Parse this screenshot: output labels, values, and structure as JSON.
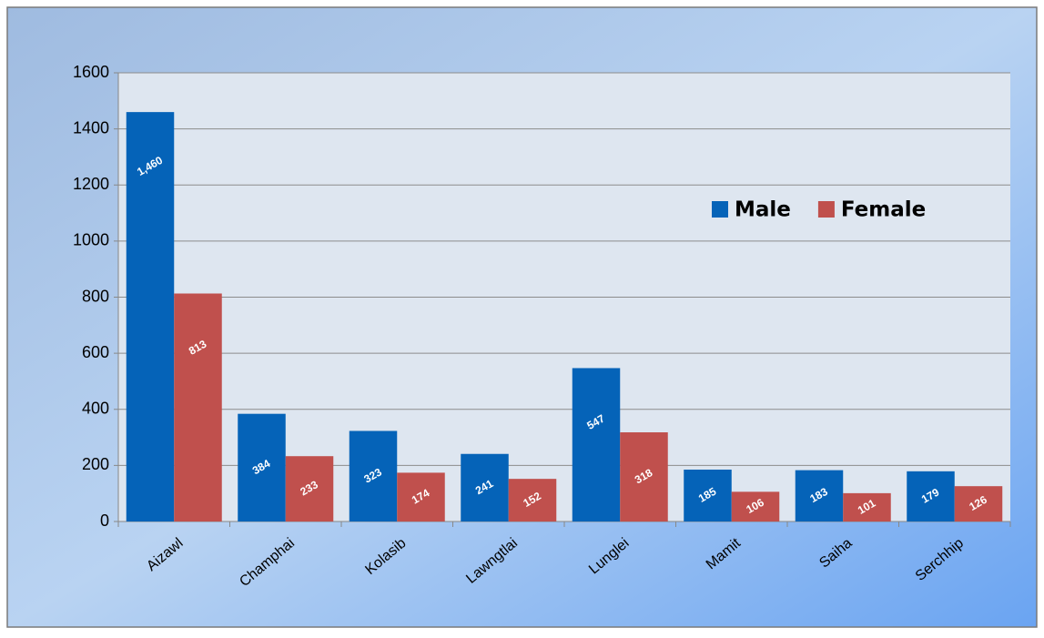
{
  "chart_data": {
    "type": "bar",
    "categories": [
      "Aizawl",
      "Champhai",
      "Kolasib",
      "Lawngtlai",
      "Lunglei",
      "Mamit",
      "Saiha",
      "Serchhip"
    ],
    "series": [
      {
        "name": "Male",
        "color": "#0563b8",
        "values": [
          1460,
          384,
          323,
          241,
          547,
          185,
          183,
          179
        ],
        "value_labels": [
          "1,460",
          "384",
          "323",
          "241",
          "547",
          "185",
          "183",
          "179"
        ]
      },
      {
        "name": "Female",
        "color": "#c0504d",
        "values": [
          813,
          233,
          174,
          152,
          318,
          106,
          101,
          126
        ]
      }
    ],
    "ylim": [
      0,
      1600
    ],
    "yticks": [
      0,
      200,
      400,
      600,
      800,
      1000,
      1200,
      1400,
      1600
    ],
    "grid": true,
    "legend": "upper right"
  }
}
